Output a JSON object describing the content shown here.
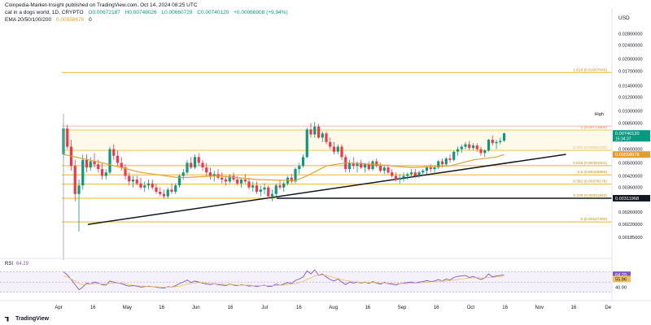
{
  "header": {
    "published_by": "Coinpedia-Market-Insight published on TradingView.com, Oct 14, 2024 08:25 UTC",
    "symbol": "cat in a dogs world, 1D, CRYPTO",
    "ohlc_o": "O0.00672187",
    "ohlc_h": "H0.00748026",
    "ohlc_l": "L0.00660729",
    "ohlc_c": "C0.00740120",
    "ohlc_change": "+0.00066908 (+9.94%)",
    "ema_label": "EMA 20/50/100/200",
    "ema_value": "0.00558678",
    "ema_extra": "0"
  },
  "currency": "USD",
  "brand": "TradingView",
  "colors": {
    "up": "#089981",
    "down": "#f23645",
    "ema": "#e0a030",
    "fib": "#f0b429",
    "trend": "#131722",
    "rsi": "#7e57c2",
    "rsi_band": "#ede7f6"
  },
  "chart_data": {
    "type": "candlestick",
    "price_axis": {
      "labels": [
        "0.02800000",
        "0.02400000",
        "0.02000000",
        "0.01700000",
        "0.01400000",
        "0.01200000",
        "0.01000000",
        "0.00850000",
        "0.00720000",
        "0.00600000",
        "0.00500000",
        "0.00420000",
        "0.00360000",
        "0.00260000",
        "0.00220000",
        "0.00185000"
      ],
      "label_y": [
        0.028,
        0.024,
        0.02,
        0.017,
        0.014,
        0.012,
        0.01,
        0.0085,
        0.0072,
        0.006,
        0.005,
        0.0042,
        0.0036,
        0.0026,
        0.0022,
        0.00185
      ],
      "ylim": [
        0.0017,
        0.031
      ],
      "scale": "log"
    },
    "time_axis": {
      "labels": [
        "Apr",
        "16",
        "May",
        "16",
        "Jun",
        "16",
        "Jul",
        "16",
        "Aug",
        "16",
        "Sep",
        "16",
        "Oct",
        "16",
        "Nov",
        "16",
        "De"
      ]
    },
    "fib_levels": [
      {
        "label": "1.618 (0.01667045)",
        "value": 0.01667045
      },
      {
        "label": "1 (0.00773800)",
        "value": 0.007738
      },
      {
        "label": "0.786 (0.00591239)",
        "value": 0.00591239
      },
      {
        "label": "0.618 (0.00481501)",
        "value": 0.00481501
      },
      {
        "label": "0.5 (0.00425866)",
        "value": 0.00425866
      },
      {
        "label": "0.382 (0.00376176)",
        "value": 0.00376176
      },
      {
        "label": "0.236 (0.00311943)",
        "value": 0.00311943
      },
      {
        "label": "0 (0.00227300)",
        "value": 0.002273
      }
    ],
    "price_badges": [
      {
        "text": "High",
        "value": 0.0096
      },
      {
        "text": "0.00740120",
        "sub": "15:34:37",
        "value": 0.0074012
      },
      {
        "text": "0.00558678",
        "value": 0.00558678
      },
      {
        "text": "0.00311968",
        "value": 0.00311968
      }
    ],
    "horizontal_line": 0.00311968,
    "trendline": {
      "from": [
        0,
        0.0022
      ],
      "to": [
        130,
        0.0056
      ]
    },
    "candles": [
      [
        0.0056,
        0.0085,
        0.0052,
        0.0079
      ],
      [
        0.0079,
        0.0083,
        0.006,
        0.0062
      ],
      [
        0.0062,
        0.0068,
        0.0045,
        0.0048
      ],
      [
        0.0048,
        0.0052,
        0.003,
        0.0033
      ],
      [
        0.0033,
        0.004,
        0.002,
        0.0037
      ],
      [
        0.0037,
        0.0056,
        0.0035,
        0.0052
      ],
      [
        0.0052,
        0.0056,
        0.0044,
        0.0047
      ],
      [
        0.0047,
        0.0054,
        0.0045,
        0.0051
      ],
      [
        0.0051,
        0.0057,
        0.0047,
        0.0049
      ],
      [
        0.0049,
        0.0052,
        0.0044,
        0.0046
      ],
      [
        0.0046,
        0.005,
        0.004,
        0.0042
      ],
      [
        0.0042,
        0.0046,
        0.004,
        0.0044
      ],
      [
        0.0044,
        0.0062,
        0.0043,
        0.006
      ],
      [
        0.006,
        0.0064,
        0.0052,
        0.0055
      ],
      [
        0.0055,
        0.0059,
        0.0048,
        0.005
      ],
      [
        0.005,
        0.0054,
        0.0045,
        0.0047
      ],
      [
        0.0047,
        0.0049,
        0.004,
        0.0042
      ],
      [
        0.0042,
        0.0044,
        0.0037,
        0.0039
      ],
      [
        0.0039,
        0.0042,
        0.0036,
        0.004
      ],
      [
        0.004,
        0.0042,
        0.0037,
        0.0038
      ],
      [
        0.0038,
        0.0041,
        0.0035,
        0.0036
      ],
      [
        0.0036,
        0.0039,
        0.0034,
        0.0037
      ],
      [
        0.0037,
        0.004,
        0.0035,
        0.0038
      ],
      [
        0.0038,
        0.004,
        0.0035,
        0.0036
      ],
      [
        0.0036,
        0.0038,
        0.0033,
        0.0034
      ],
      [
        0.0034,
        0.0036,
        0.0032,
        0.0033
      ],
      [
        0.0033,
        0.0035,
        0.0031,
        0.0032
      ],
      [
        0.0032,
        0.0036,
        0.0031,
        0.0035
      ],
      [
        0.0035,
        0.0038,
        0.0033,
        0.0034
      ],
      [
        0.0034,
        0.0038,
        0.0033,
        0.0037
      ],
      [
        0.0037,
        0.0043,
        0.0036,
        0.0042
      ],
      [
        0.0042,
        0.0046,
        0.004,
        0.0044
      ],
      [
        0.0044,
        0.0052,
        0.0043,
        0.005
      ],
      [
        0.005,
        0.0054,
        0.0046,
        0.0047
      ],
      [
        0.0047,
        0.0056,
        0.0046,
        0.0054
      ],
      [
        0.0054,
        0.0057,
        0.0048,
        0.005
      ],
      [
        0.005,
        0.0052,
        0.0045,
        0.0047
      ],
      [
        0.0047,
        0.005,
        0.0042,
        0.0044
      ],
      [
        0.0044,
        0.0047,
        0.004,
        0.0042
      ],
      [
        0.0042,
        0.0045,
        0.0039,
        0.0043
      ],
      [
        0.0043,
        0.0046,
        0.004,
        0.0041
      ],
      [
        0.0041,
        0.0044,
        0.0038,
        0.004
      ],
      [
        0.004,
        0.0042,
        0.0037,
        0.0039
      ],
      [
        0.0039,
        0.0043,
        0.0038,
        0.0042
      ],
      [
        0.0042,
        0.0044,
        0.0039,
        0.004
      ],
      [
        0.004,
        0.0042,
        0.0037,
        0.0038
      ],
      [
        0.0038,
        0.0041,
        0.0036,
        0.004
      ],
      [
        0.004,
        0.0043,
        0.0038,
        0.0039
      ],
      [
        0.0039,
        0.0041,
        0.0035,
        0.0036
      ],
      [
        0.0036,
        0.0039,
        0.0034,
        0.0037
      ],
      [
        0.0037,
        0.0039,
        0.0033,
        0.0034
      ],
      [
        0.0034,
        0.0037,
        0.0032,
        0.0035
      ],
      [
        0.0035,
        0.0038,
        0.0033,
        0.0036
      ],
      [
        0.0036,
        0.0037,
        0.0031,
        0.0032
      ],
      [
        0.0032,
        0.0035,
        0.003,
        0.0033
      ],
      [
        0.0033,
        0.0038,
        0.0032,
        0.0037
      ],
      [
        0.0037,
        0.004,
        0.0035,
        0.0036
      ],
      [
        0.0036,
        0.0039,
        0.0034,
        0.0038
      ],
      [
        0.0038,
        0.0042,
        0.0037,
        0.0041
      ],
      [
        0.0041,
        0.0043,
        0.0038,
        0.0039
      ],
      [
        0.0039,
        0.0047,
        0.0038,
        0.0046
      ],
      [
        0.0046,
        0.005,
        0.0043,
        0.0048
      ],
      [
        0.0048,
        0.0056,
        0.0047,
        0.0054
      ],
      [
        0.0054,
        0.008,
        0.0053,
        0.0078
      ],
      [
        0.0078,
        0.0085,
        0.007,
        0.0073
      ],
      [
        0.0073,
        0.0086,
        0.007,
        0.0081
      ],
      [
        0.0081,
        0.0084,
        0.0069,
        0.007
      ],
      [
        0.007,
        0.0076,
        0.0066,
        0.0074
      ],
      [
        0.0074,
        0.0076,
        0.0064,
        0.0066
      ],
      [
        0.0066,
        0.007,
        0.006,
        0.0062
      ],
      [
        0.0062,
        0.0066,
        0.0056,
        0.0058
      ],
      [
        0.0058,
        0.0064,
        0.0056,
        0.0062
      ],
      [
        0.0062,
        0.0064,
        0.0052,
        0.0054
      ],
      [
        0.0054,
        0.0056,
        0.0044,
        0.0046
      ],
      [
        0.0046,
        0.0052,
        0.0044,
        0.005
      ],
      [
        0.005,
        0.0054,
        0.0046,
        0.0048
      ],
      [
        0.0048,
        0.0051,
        0.0044,
        0.005
      ],
      [
        0.005,
        0.0052,
        0.0046,
        0.0047
      ],
      [
        0.0047,
        0.005,
        0.0044,
        0.0049
      ],
      [
        0.0049,
        0.0051,
        0.0045,
        0.0046
      ],
      [
        0.0046,
        0.0052,
        0.0045,
        0.0051
      ],
      [
        0.0051,
        0.0053,
        0.0047,
        0.0048
      ],
      [
        0.0048,
        0.005,
        0.0044,
        0.0045
      ],
      [
        0.0045,
        0.0048,
        0.0043,
        0.0047
      ],
      [
        0.0047,
        0.0049,
        0.0043,
        0.0044
      ],
      [
        0.0044,
        0.0046,
        0.0041,
        0.0042
      ],
      [
        0.0042,
        0.0044,
        0.0039,
        0.004
      ],
      [
        0.004,
        0.0043,
        0.0038,
        0.0041
      ],
      [
        0.0041,
        0.0044,
        0.0039,
        0.0042
      ],
      [
        0.0042,
        0.0044,
        0.004,
        0.0043
      ],
      [
        0.0043,
        0.0046,
        0.0041,
        0.0044
      ],
      [
        0.0044,
        0.0046,
        0.0041,
        0.0042
      ],
      [
        0.0042,
        0.0045,
        0.0041,
        0.0044
      ],
      [
        0.0044,
        0.0046,
        0.0042,
        0.0045
      ],
      [
        0.0045,
        0.0048,
        0.0043,
        0.0047
      ],
      [
        0.0047,
        0.0049,
        0.0044,
        0.0046
      ],
      [
        0.0046,
        0.0048,
        0.0043,
        0.0047
      ],
      [
        0.0047,
        0.0052,
        0.0046,
        0.0051
      ],
      [
        0.0051,
        0.0053,
        0.0047,
        0.0049
      ],
      [
        0.0049,
        0.0054,
        0.0048,
        0.0053
      ],
      [
        0.0053,
        0.0056,
        0.005,
        0.0052
      ],
      [
        0.0052,
        0.0059,
        0.0051,
        0.0058
      ],
      [
        0.0058,
        0.0062,
        0.0055,
        0.006
      ],
      [
        0.006,
        0.0064,
        0.0057,
        0.0062
      ],
      [
        0.0062,
        0.0066,
        0.006,
        0.0064
      ],
      [
        0.0064,
        0.0067,
        0.0059,
        0.0061
      ],
      [
        0.0061,
        0.0065,
        0.0059,
        0.0063
      ],
      [
        0.0063,
        0.0065,
        0.0058,
        0.006
      ],
      [
        0.006,
        0.0062,
        0.0055,
        0.0057
      ],
      [
        0.0057,
        0.006,
        0.0054,
        0.0059
      ],
      [
        0.0059,
        0.0069,
        0.0058,
        0.0068
      ],
      [
        0.0068,
        0.0072,
        0.0063,
        0.0065
      ],
      [
        0.0065,
        0.0068,
        0.006,
        0.0066
      ],
      [
        0.0066,
        0.007,
        0.0064,
        0.0067
      ],
      [
        0.00672187,
        0.00748026,
        0.00660729,
        0.0074012
      ]
    ],
    "ema_line": [
      [
        0,
        0.0056
      ],
      [
        10,
        0.005
      ],
      [
        20,
        0.0044
      ],
      [
        30,
        0.0041
      ],
      [
        40,
        0.0042
      ],
      [
        50,
        0.004
      ],
      [
        60,
        0.00395
      ],
      [
        63,
        0.0042
      ],
      [
        68,
        0.0048
      ],
      [
        73,
        0.005
      ],
      [
        80,
        0.0049
      ],
      [
        90,
        0.0047
      ],
      [
        100,
        0.0048
      ],
      [
        106,
        0.0052
      ],
      [
        112,
        0.0054
      ],
      [
        114,
        0.00558678
      ]
    ],
    "rsi": {
      "label": "RSI",
      "value_label": "64.29",
      "axis_labels": [
        "64.29",
        "55.96",
        "40.00"
      ],
      "axis_values": [
        64.29,
        55.96,
        40.0
      ],
      "ylim": [
        20,
        90
      ],
      "band": [
        30,
        70
      ],
      "rsi_values": [
        70,
        64,
        55,
        45,
        35,
        40,
        48,
        46,
        50,
        48,
        45,
        44,
        52,
        50,
        48,
        47,
        44,
        42,
        43,
        42,
        40,
        41,
        42,
        41,
        40,
        39,
        38,
        41,
        40,
        43,
        47,
        50,
        54,
        49,
        52,
        50,
        48,
        46,
        45,
        47,
        45,
        44,
        43,
        46,
        44,
        43,
        45,
        44,
        42,
        43,
        41,
        43,
        44,
        41,
        42,
        46,
        44,
        46,
        49,
        47,
        53,
        56,
        60,
        72,
        66,
        74,
        63,
        66,
        60,
        55,
        52,
        56,
        50,
        45,
        50,
        48,
        50,
        48,
        50,
        47,
        51,
        48,
        46,
        49,
        47,
        46,
        44,
        47,
        48,
        49,
        50,
        48,
        50,
        51,
        53,
        51,
        52,
        55,
        52,
        56,
        54,
        59,
        61,
        62,
        63,
        59,
        61,
        58,
        55,
        58,
        66,
        60,
        62,
        63,
        64.29
      ],
      "signal_values": [
        62,
        60,
        56,
        52,
        47,
        45,
        45,
        46,
        47,
        47,
        46,
        46,
        47,
        48,
        48,
        48,
        47,
        45,
        44,
        43,
        42,
        42,
        41,
        41,
        41,
        40,
        40,
        40,
        40,
        41,
        42,
        44,
        46,
        47,
        48,
        49,
        49,
        48,
        47,
        47,
        46,
        46,
        45,
        45,
        45,
        44,
        44,
        44,
        44,
        43,
        43,
        43,
        43,
        43,
        43,
        43,
        44,
        44,
        45,
        46,
        47,
        49,
        51,
        55,
        58,
        62,
        63,
        64,
        63,
        61,
        59,
        57,
        55,
        53,
        52,
        51,
        50,
        49,
        49,
        49,
        49,
        49,
        48,
        48,
        48,
        48,
        47,
        47,
        47,
        47,
        48,
        48,
        48,
        49,
        49,
        50,
        50,
        51,
        52,
        52,
        53,
        54,
        55,
        56,
        57,
        58,
        58,
        59,
        58,
        58,
        59,
        59,
        60,
        61,
        61
      ]
    }
  }
}
